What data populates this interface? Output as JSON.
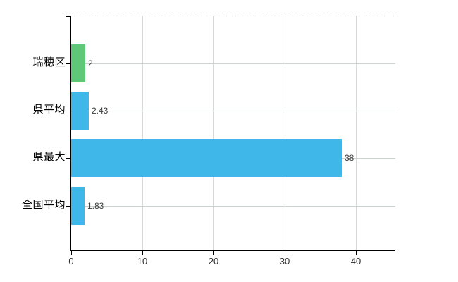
{
  "chart_data": {
    "type": "bar",
    "orientation": "horizontal",
    "title": "",
    "xlabel": "",
    "ylabel": "",
    "categories": [
      "瑞穂区",
      "県平均",
      "県最大",
      "全国平均"
    ],
    "values": [
      2,
      2.43,
      38,
      1.83
    ],
    "value_labels": [
      "2",
      "2.43",
      "38",
      "1.83"
    ],
    "bar_colors": [
      "#5fc878",
      "#3fb8e9",
      "#3fb8e9",
      "#3fb8e9"
    ],
    "x_tick_values": [
      0,
      10,
      20,
      30,
      40
    ],
    "x_tick_labels": [
      "0",
      "10",
      "20",
      "30",
      "40"
    ],
    "xlim": [
      0,
      45.5
    ],
    "grid": "on",
    "legend": "none"
  },
  "colors": {
    "bar_green": "#5fc878",
    "bar_blue": "#3fb8e9",
    "axis": "#000000",
    "h_gridline": "#cdd3cd",
    "v_gridline": "#d8d8d8",
    "top_gridline": "#c9c9c9",
    "tick_text": "#2e2e2e",
    "value_text": "#3d3d3d",
    "category_text": "#000000",
    "background": "#ffffff"
  }
}
